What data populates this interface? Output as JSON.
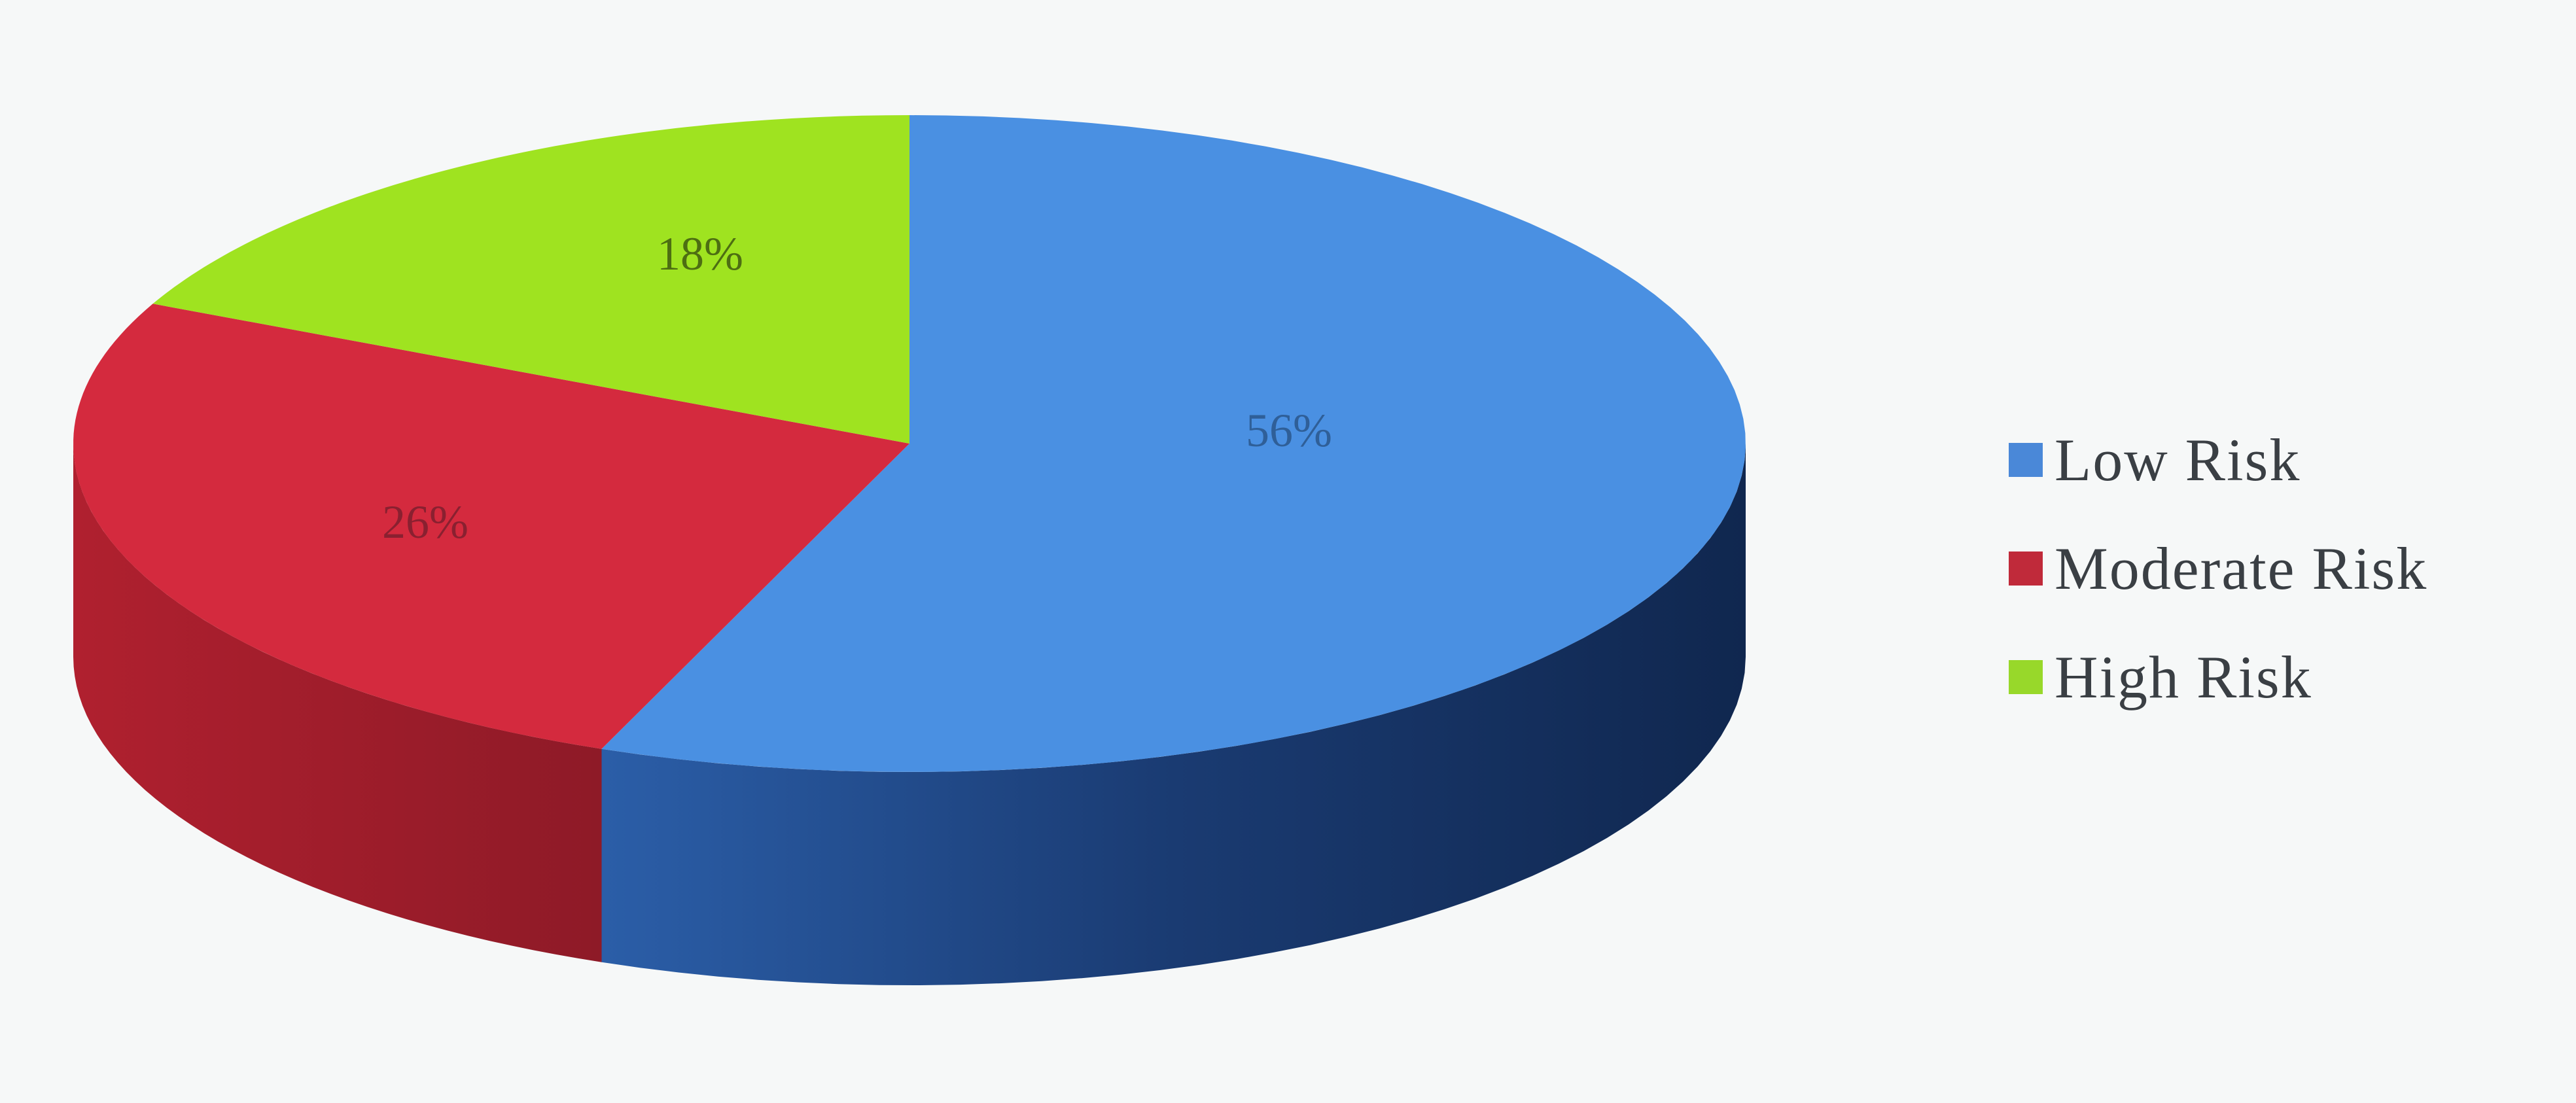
{
  "chart_data": {
    "type": "pie",
    "style": "3d",
    "start": "12 o'clock, clockwise",
    "categories": [
      "Low Risk",
      "Moderate Risk",
      "High Risk"
    ],
    "values": [
      56,
      26,
      18
    ],
    "unit": "%",
    "data_labels": [
      "56%",
      "26%",
      "18%"
    ],
    "colors": [
      "#4a90e2",
      "#d42a3e",
      "#9fe320"
    ],
    "side_colors": [
      "#1c427e",
      "#a3202f",
      "#6fa014"
    ],
    "legend_placement": "right"
  }
}
